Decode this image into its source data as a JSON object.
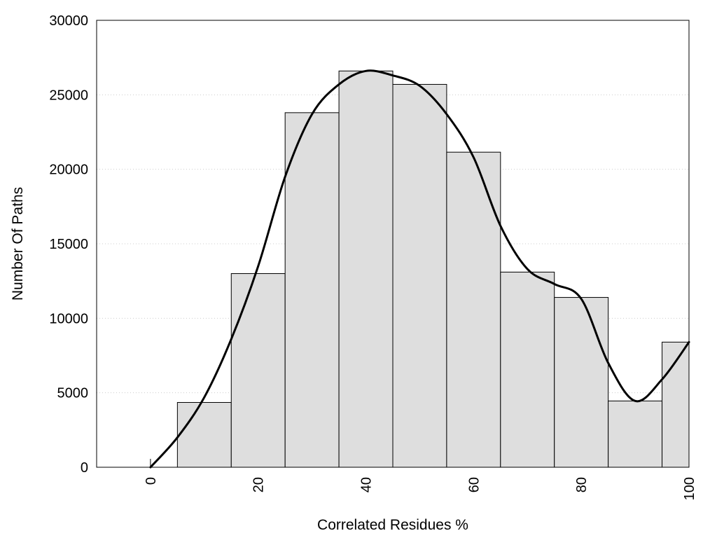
{
  "chart_data": {
    "type": "bar",
    "xlabel": "Correlated Residues %",
    "ylabel": "Number Of Paths",
    "xlim": [
      -10,
      100
    ],
    "ylim": [
      0,
      30000
    ],
    "x_ticks": [
      0,
      20,
      40,
      60,
      80,
      100
    ],
    "y_ticks": [
      0,
      5000,
      10000,
      15000,
      20000,
      25000,
      30000
    ],
    "grid": "horizontal dotted",
    "bar_color": "#dedede",
    "bins": [
      {
        "from": 5,
        "to": 15,
        "value": 4350
      },
      {
        "from": 15,
        "to": 25,
        "value": 13000
      },
      {
        "from": 25,
        "to": 35,
        "value": 23800
      },
      {
        "from": 35,
        "to": 45,
        "value": 26600
      },
      {
        "from": 45,
        "to": 55,
        "value": 25700
      },
      {
        "from": 55,
        "to": 65,
        "value": 21150
      },
      {
        "from": 65,
        "to": 75,
        "value": 13100
      },
      {
        "from": 75,
        "to": 85,
        "value": 11400
      },
      {
        "from": 85,
        "to": 95,
        "value": 4450
      },
      {
        "from": 95,
        "to": 105,
        "value": 8400
      }
    ],
    "curve": {
      "type": "line",
      "smooth": true,
      "points": [
        [
          0,
          0
        ],
        [
          5,
          2000
        ],
        [
          10,
          4700
        ],
        [
          15,
          8600
        ],
        [
          20,
          13500
        ],
        [
          25,
          19500
        ],
        [
          30,
          23700
        ],
        [
          35,
          25700
        ],
        [
          40,
          26600
        ],
        [
          45,
          26300
        ],
        [
          50,
          25600
        ],
        [
          55,
          23700
        ],
        [
          60,
          20800
        ],
        [
          65,
          16200
        ],
        [
          70,
          13300
        ],
        [
          75,
          12300
        ],
        [
          80,
          11300
        ],
        [
          85,
          7000
        ],
        [
          90,
          4450
        ],
        [
          95,
          5900
        ],
        [
          100,
          8400
        ]
      ]
    }
  }
}
